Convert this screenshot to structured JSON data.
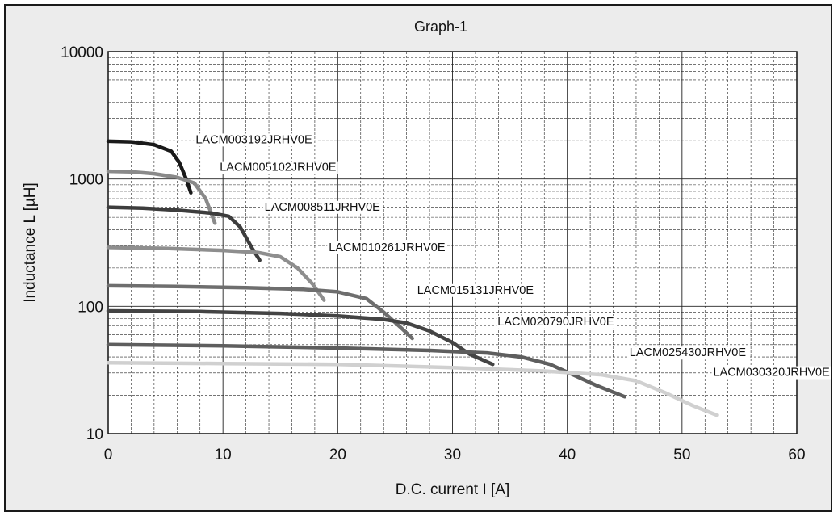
{
  "chart_data": {
    "type": "line",
    "title": "Graph-1",
    "xlabel": "D.C. current I [A]",
    "ylabel": "Inductance L [µH]",
    "xlim": [
      0,
      60
    ],
    "ylim": [
      10,
      10000
    ],
    "yscale": "log",
    "grid": true,
    "x_ticks": [
      "0",
      "10",
      "20",
      "30",
      "40",
      "50",
      "60"
    ],
    "y_ticks": [
      "10",
      "100",
      "1000",
      "10000"
    ],
    "series": [
      {
        "name": "LACM003192JRHV0E",
        "color": "#1a1a1a",
        "points": [
          [
            0,
            1980
          ],
          [
            2,
            1960
          ],
          [
            4,
            1860
          ],
          [
            5.5,
            1650
          ],
          [
            6.2,
            1350
          ],
          [
            6.8,
            1000
          ],
          [
            7.2,
            780
          ]
        ]
      },
      {
        "name": "LACM005102JRHV0E",
        "color": "#8a8a8a",
        "points": [
          [
            0,
            1150
          ],
          [
            2,
            1140
          ],
          [
            4,
            1100
          ],
          [
            6,
            1030
          ],
          [
            7.5,
            930
          ],
          [
            8.5,
            700
          ],
          [
            9.3,
            450
          ]
        ]
      },
      {
        "name": "LACM008511JRHV0E",
        "color": "#3d3d3d",
        "points": [
          [
            0,
            600
          ],
          [
            3,
            590
          ],
          [
            6,
            570
          ],
          [
            9,
            540
          ],
          [
            10.5,
            510
          ],
          [
            11.5,
            420
          ],
          [
            12.5,
            290
          ],
          [
            13.2,
            230
          ]
        ]
      },
      {
        "name": "LACM010261JRHV0E",
        "color": "#8e8e8e",
        "points": [
          [
            0,
            290
          ],
          [
            5,
            285
          ],
          [
            10,
            275
          ],
          [
            13,
            265
          ],
          [
            15,
            245
          ],
          [
            16.5,
            200
          ],
          [
            17.8,
            150
          ],
          [
            18.8,
            112
          ]
        ]
      },
      {
        "name": "LACM015131JRHV0E",
        "color": "#6e6e6e",
        "points": [
          [
            0,
            145
          ],
          [
            6,
            143
          ],
          [
            12,
            140
          ],
          [
            17,
            136
          ],
          [
            20,
            130
          ],
          [
            22.5,
            115
          ],
          [
            24,
            90
          ],
          [
            25.5,
            68
          ],
          [
            26.5,
            56
          ]
        ]
      },
      {
        "name": "LACM020790JRHV0E",
        "color": "#444444",
        "points": [
          [
            0,
            92
          ],
          [
            8,
            91
          ],
          [
            15,
            88
          ],
          [
            20,
            84
          ],
          [
            24,
            79
          ],
          [
            26,
            74
          ],
          [
            28,
            64
          ],
          [
            30,
            52
          ],
          [
            31.5,
            42
          ],
          [
            33.5,
            35
          ]
        ]
      },
      {
        "name": "LACM025430JRHV0E",
        "color": "#5e5e5e",
        "points": [
          [
            0,
            50
          ],
          [
            10,
            49
          ],
          [
            20,
            47
          ],
          [
            28,
            45
          ],
          [
            33,
            43
          ],
          [
            36,
            40
          ],
          [
            38.5,
            35
          ],
          [
            40.5,
            29
          ],
          [
            42.5,
            24
          ],
          [
            45,
            19.5
          ]
        ]
      },
      {
        "name": "LACM030320JRHV0E",
        "color": "#d0d0d0",
        "points": [
          [
            0,
            36
          ],
          [
            10,
            35.5
          ],
          [
            20,
            35
          ],
          [
            30,
            33
          ],
          [
            38,
            31
          ],
          [
            43,
            29
          ],
          [
            46,
            26
          ],
          [
            48.5,
            21
          ],
          [
            51,
            16.5
          ],
          [
            53,
            14
          ]
        ]
      }
    ]
  }
}
